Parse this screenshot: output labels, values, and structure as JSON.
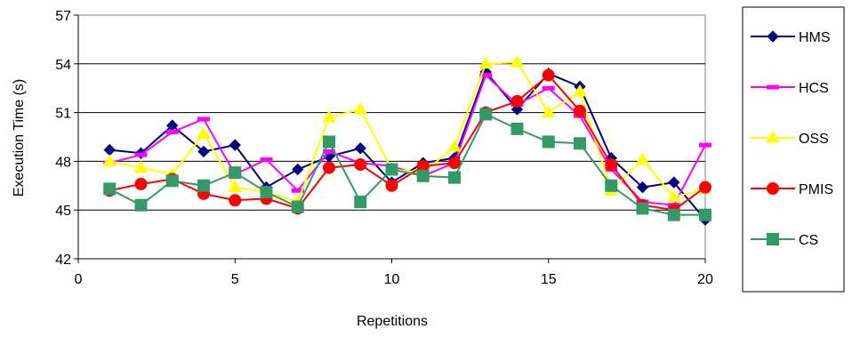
{
  "chart_data": {
    "type": "line",
    "title": "",
    "xlabel": "Repetitions",
    "ylabel": "Execution Time (s)",
    "xlim": [
      0,
      20
    ],
    "ylim": [
      42,
      57
    ],
    "xticks": [
      "0",
      "5",
      "10",
      "15",
      "20"
    ],
    "yticks": [
      "42",
      "45",
      "48",
      "51",
      "54",
      "57"
    ],
    "grid": "horizontal",
    "legend": "right",
    "x": [
      1,
      2,
      3,
      4,
      5,
      6,
      7,
      8,
      9,
      10,
      11,
      12,
      13,
      14,
      15,
      16,
      17,
      18,
      19,
      20
    ],
    "series": [
      {
        "name": "HMS",
        "color": "#000080",
        "marker": "diamond",
        "values": [
          48.7,
          48.5,
          50.2,
          48.6,
          49.0,
          46.4,
          47.5,
          48.3,
          48.8,
          46.7,
          47.9,
          48.2,
          53.5,
          51.2,
          53.4,
          52.6,
          48.2,
          46.4,
          46.7,
          44.4
        ]
      },
      {
        "name": "HCS",
        "color": "#FF00FF",
        "marker": "dash",
        "values": [
          47.9,
          48.4,
          49.8,
          50.6,
          47.2,
          48.1,
          46.2,
          48.6,
          47.9,
          47.7,
          47.1,
          47.9,
          53.3,
          51.5,
          52.5,
          50.8,
          47.5,
          45.5,
          45.3,
          49.0
        ]
      },
      {
        "name": "OSS",
        "color": "#FFFF00",
        "marker": "triangle",
        "values": [
          48.0,
          47.6,
          47.2,
          49.7,
          46.4,
          46.1,
          45.5,
          50.7,
          51.2,
          47.5,
          47.3,
          48.9,
          54.0,
          54.1,
          51.0,
          52.3,
          46.2,
          48.1,
          45.8,
          46.3
        ]
      },
      {
        "name": "PMIS",
        "color": "#FF0000",
        "marker": "circle",
        "values": [
          46.2,
          46.6,
          46.9,
          46.0,
          45.6,
          45.7,
          45.1,
          47.6,
          47.8,
          46.5,
          47.7,
          47.9,
          51.0,
          51.7,
          53.3,
          51.1,
          47.8,
          45.3,
          45.0,
          46.4
        ]
      },
      {
        "name": "CS",
        "color": "#339966",
        "marker": "square",
        "values": [
          46.3,
          45.3,
          46.8,
          46.5,
          47.3,
          46.1,
          45.2,
          49.2,
          45.5,
          47.5,
          47.1,
          47.0,
          50.9,
          50.0,
          49.2,
          49.1,
          46.5,
          45.1,
          44.7,
          44.7
        ]
      }
    ]
  }
}
